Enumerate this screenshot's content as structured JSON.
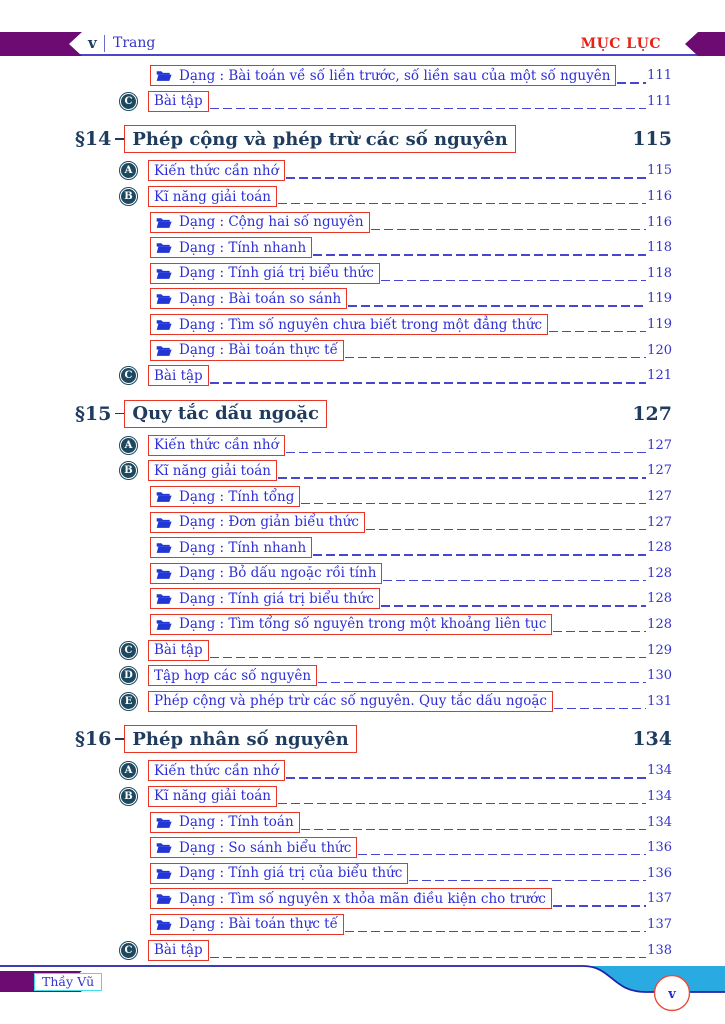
{
  "header": {
    "page_marker": "v",
    "trang_label": "Trang",
    "muc_luc_label": "MỤC LỤC"
  },
  "footer": {
    "badge_label": "Thầy Vũ",
    "page_marker": "v"
  },
  "colors": {
    "banner_purple": "#6e0b72",
    "link_border_red": "#e93526",
    "entry_blue": "#2e2ed8",
    "section_navy": "#1f3c5f",
    "footer_cyan": "#29abe2",
    "folder_blue": "#2136d4"
  },
  "icons": {
    "dang_icon": "folder-open-icon"
  },
  "toc": {
    "entries": [
      {
        "kind": "dang",
        "label": "Dạng : Bài toán về số liền trước, số liền sau của một số nguyên",
        "page": "111"
      },
      {
        "kind": "letter",
        "letter": "C",
        "label": "Bài tập",
        "page": "111"
      },
      {
        "kind": "section",
        "num": "§14",
        "label": "Phép cộng và phép trừ các số nguyên",
        "page": "115"
      },
      {
        "kind": "letter",
        "letter": "A",
        "label": "Kiến thức cần nhớ",
        "page": "115"
      },
      {
        "kind": "letter",
        "letter": "B",
        "label": "Kĩ năng giải toán",
        "page": "116"
      },
      {
        "kind": "dang",
        "label": "Dạng : Cộng hai số nguyên",
        "page": "116"
      },
      {
        "kind": "dang",
        "label": "Dạng : Tính nhanh",
        "page": "118"
      },
      {
        "kind": "dang",
        "label": "Dạng : Tính giá trị biểu thức",
        "page": "118"
      },
      {
        "kind": "dang",
        "label": "Dạng : Bài toán so sánh",
        "page": "119"
      },
      {
        "kind": "dang",
        "label": "Dạng : Tìm số nguyên chưa biết trong một đẳng thức",
        "page": "119"
      },
      {
        "kind": "dang",
        "label": "Dạng : Bài toán thực tế",
        "page": "120"
      },
      {
        "kind": "letter",
        "letter": "C",
        "label": "Bài tập",
        "page": "121"
      },
      {
        "kind": "section",
        "num": "§15",
        "label": "Quy tắc dấu ngoặc",
        "page": "127"
      },
      {
        "kind": "letter",
        "letter": "A",
        "label": "Kiến thức cần nhớ",
        "page": "127"
      },
      {
        "kind": "letter",
        "letter": "B",
        "label": "Kĩ năng giải toán",
        "page": "127"
      },
      {
        "kind": "dang",
        "label": "Dạng : Tính tổng",
        "page": "127"
      },
      {
        "kind": "dang",
        "label": "Dạng : Đơn giản biểu thức",
        "page": "127"
      },
      {
        "kind": "dang",
        "label": "Dạng : Tính nhanh",
        "page": "128"
      },
      {
        "kind": "dang",
        "label": "Dạng : Bỏ dấu ngoặc rồi tính",
        "page": "128"
      },
      {
        "kind": "dang",
        "label": "Dạng : Tính giá trị biểu thức",
        "page": "128"
      },
      {
        "kind": "dang",
        "label": "Dạng : Tìm tổng số nguyên trong một khoảng liên tục",
        "page": "128"
      },
      {
        "kind": "letter",
        "letter": "C",
        "label": "Bài tập",
        "page": "129"
      },
      {
        "kind": "letter",
        "letter": "D",
        "label": "Tập hợp các số nguyên",
        "page": "130"
      },
      {
        "kind": "letter",
        "letter": "E",
        "label": "Phép cộng và phép trừ các số nguyên. Quy tắc dấu ngoặc",
        "page": "131"
      },
      {
        "kind": "section",
        "num": "§16",
        "label": "Phép nhân số nguyên",
        "page": "134"
      },
      {
        "kind": "letter",
        "letter": "A",
        "label": "Kiến thức cần nhớ",
        "page": "134"
      },
      {
        "kind": "letter",
        "letter": "B",
        "label": "Kĩ năng giải toán",
        "page": "134"
      },
      {
        "kind": "dang",
        "label": "Dạng : Tính toán",
        "page": "134"
      },
      {
        "kind": "dang",
        "label": "Dạng : So sánh biểu thức",
        "page": "136"
      },
      {
        "kind": "dang",
        "label": "Dạng : Tính giá trị của biểu thức",
        "page": "136"
      },
      {
        "kind": "dang",
        "label": "Dạng : Tìm số nguyên x thỏa mãn điều kiện cho trước",
        "page": "137"
      },
      {
        "kind": "dang",
        "label": "Dạng : Bài toán thực tế",
        "page": "137"
      },
      {
        "kind": "letter",
        "letter": "C",
        "label": "Bài tập",
        "page": "138"
      }
    ]
  }
}
